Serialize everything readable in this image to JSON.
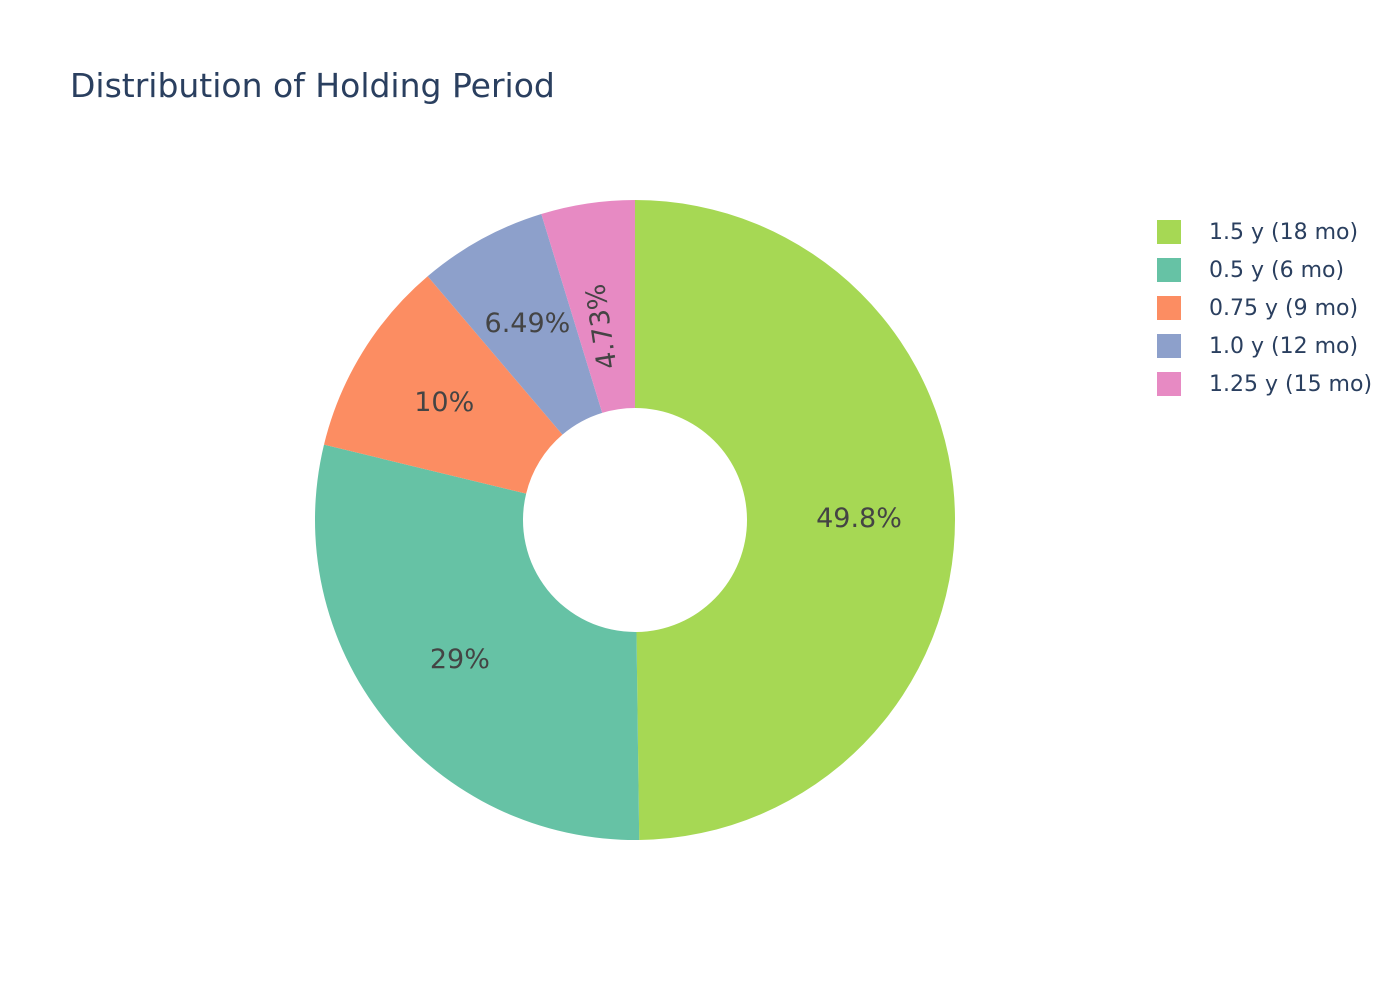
{
  "chart_data": {
    "type": "pie",
    "title": "Distribution of Holding Period",
    "hole": 0.35,
    "direction": "clockwise",
    "legend_position": "right",
    "slices": [
      {
        "label": "1.5 y (18 mo)",
        "value": 49.8,
        "text": "49.8%",
        "color": "#a6d854"
      },
      {
        "label": "0.5 y (6 mo)",
        "value": 29.0,
        "text": "29%",
        "color": "#66c2a5"
      },
      {
        "label": "0.75 y (9 mo)",
        "value": 10.0,
        "text": "10%",
        "color": "#fc8d62"
      },
      {
        "label": "1.0 y (12 mo)",
        "value": 6.49,
        "text": "6.49%",
        "color": "#8da0cb"
      },
      {
        "label": "1.25 y (15 mo)",
        "value": 4.73,
        "text": "4.73%",
        "color": "#e78ac3"
      }
    ]
  }
}
